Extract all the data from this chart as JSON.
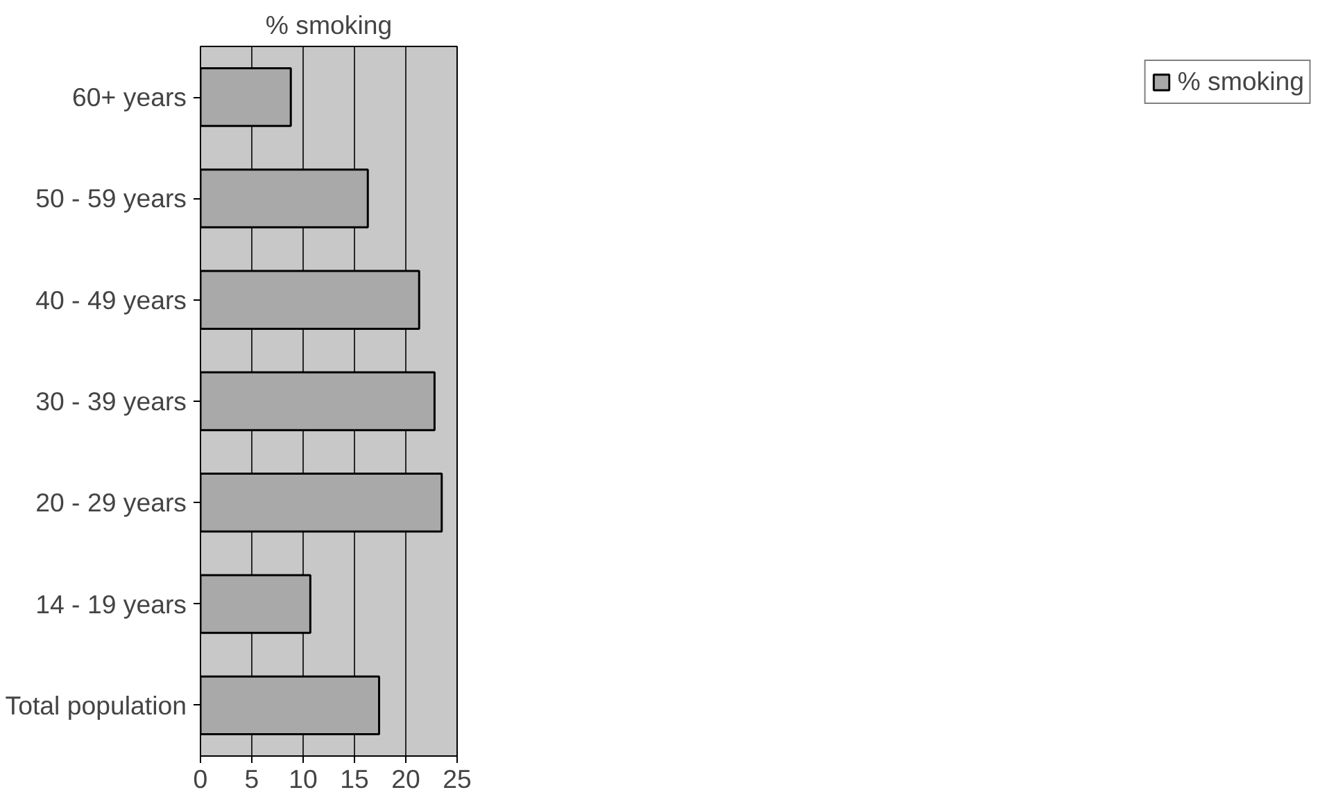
{
  "chart_data": {
    "type": "bar",
    "orientation": "horizontal",
    "title": "% smoking",
    "categories": [
      "60+ years",
      "50 - 59 years",
      "40 - 49 years",
      "30 - 39 years",
      "20 - 29 years",
      "14 - 19 years",
      "Total population"
    ],
    "series": [
      {
        "name": "% smoking",
        "color": "#a9a9a9",
        "values": [
          8.8,
          16.3,
          21.3,
          22.8,
          23.5,
          10.7,
          17.4
        ]
      }
    ],
    "xlim": [
      0,
      25
    ],
    "xticks": [
      0,
      5,
      10,
      15,
      20,
      25
    ],
    "grid": "x",
    "legend": "right"
  }
}
